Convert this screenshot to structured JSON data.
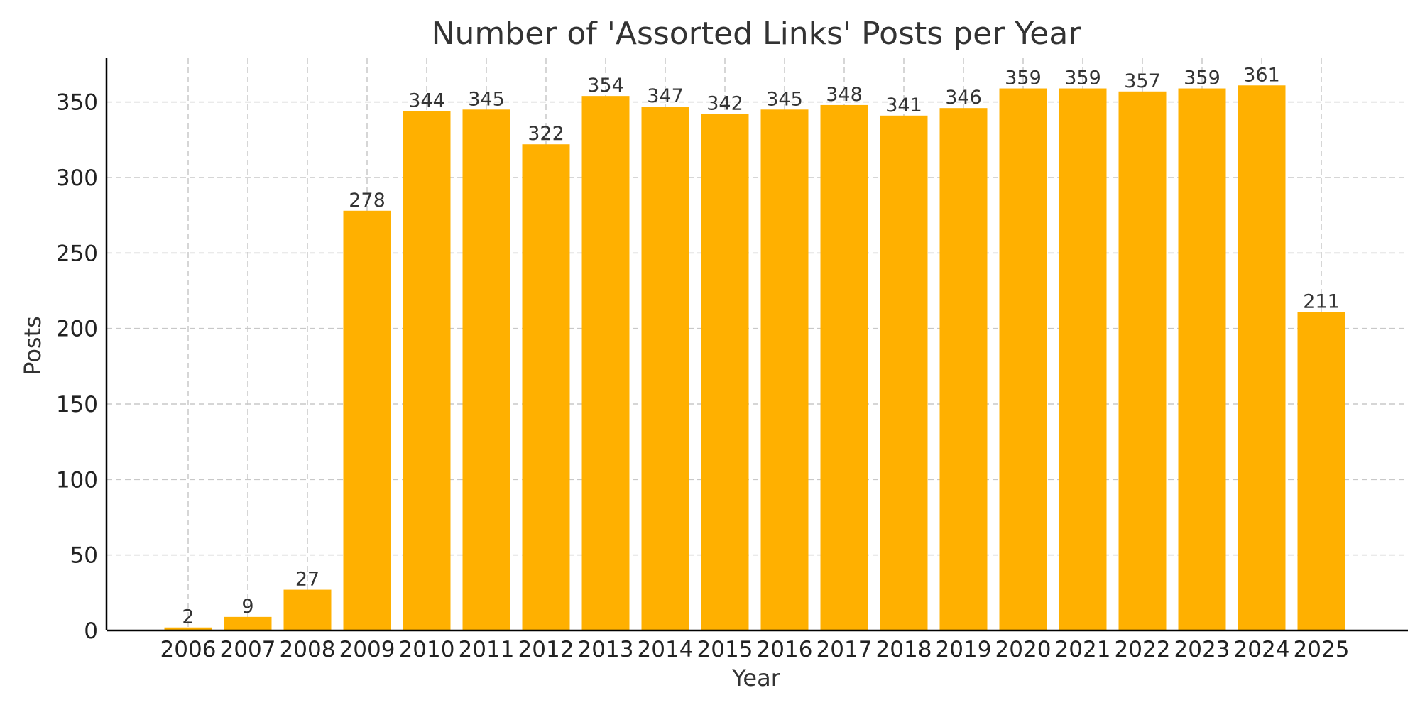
{
  "chart_data": {
    "type": "bar",
    "title": "Number of 'Assorted Links' Posts per Year",
    "xlabel": "Year",
    "ylabel": "Posts",
    "categories": [
      "2006",
      "2007",
      "2008",
      "2009",
      "2010",
      "2011",
      "2012",
      "2013",
      "2014",
      "2015",
      "2016",
      "2017",
      "2018",
      "2019",
      "2020",
      "2021",
      "2022",
      "2023",
      "2024",
      "2025"
    ],
    "values": [
      2,
      9,
      27,
      278,
      344,
      345,
      322,
      354,
      347,
      342,
      345,
      348,
      341,
      346,
      359,
      359,
      357,
      359,
      361,
      211
    ],
    "ylim": [
      0,
      379
    ],
    "yticks": [
      0,
      50,
      100,
      150,
      200,
      250,
      300,
      350
    ],
    "grid": true,
    "bar_color": "#FFB000"
  }
}
